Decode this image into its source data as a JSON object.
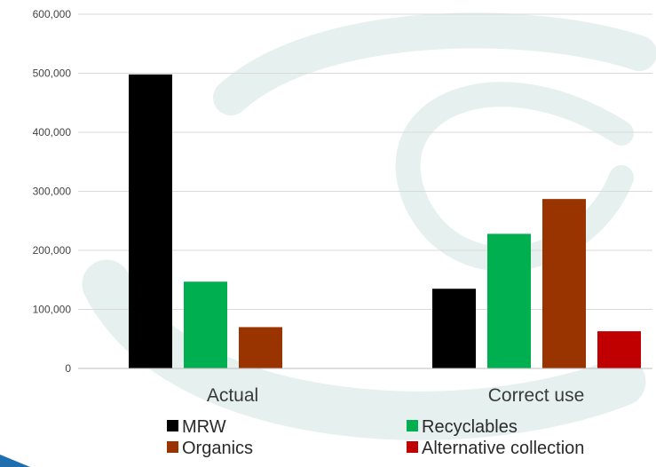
{
  "chart_data": {
    "type": "bar",
    "categories": [
      "Actual",
      "Correct use"
    ],
    "series": [
      {
        "name": "MRW",
        "color": "#000000",
        "values": [
          498000,
          135000
        ]
      },
      {
        "name": "Recyclables",
        "color": "#00b050",
        "values": [
          147000,
          228000
        ]
      },
      {
        "name": "Organics",
        "color": "#993300",
        "values": [
          70000,
          287000
        ]
      },
      {
        "name": "Alternative collection",
        "color": "#c00000",
        "values": [
          null,
          63000
        ]
      }
    ],
    "yticks": [
      "0",
      "100,000",
      "200,000",
      "300,000",
      "400,000",
      "500,000",
      "600,000"
    ],
    "ylim": [
      0,
      600000
    ],
    "grid": true,
    "legend_position": "bottom",
    "title": "",
    "xlabel": "",
    "ylabel": ""
  }
}
